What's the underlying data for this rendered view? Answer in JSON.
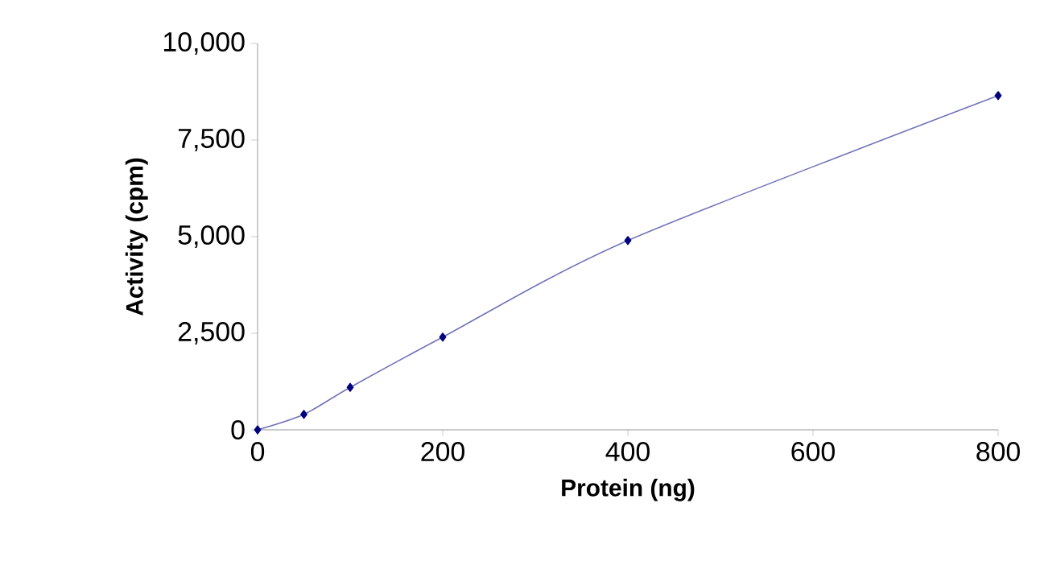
{
  "chart_data": {
    "type": "line",
    "xlabel": "Protein (ng)",
    "ylabel": "Activity (cpm)",
    "x": [
      0,
      50,
      100,
      200,
      400,
      800
    ],
    "values": [
      0,
      400,
      1100,
      2400,
      4900,
      8650
    ],
    "color": "#00007f",
    "marker": "diamond",
    "line_style": "solid",
    "grid": false,
    "xlim": [
      0,
      800
    ],
    "ylim": [
      0,
      10000
    ],
    "xticks": [
      0,
      200,
      400,
      600,
      800
    ],
    "yticks": [
      0,
      {
        "value": 2500,
        "label": "2,500"
      },
      {
        "value": 5000,
        "label": "5,000"
      },
      {
        "value": 7500,
        "label": "7,500"
      },
      {
        "value": 10000,
        "label": "10,000"
      }
    ]
  }
}
